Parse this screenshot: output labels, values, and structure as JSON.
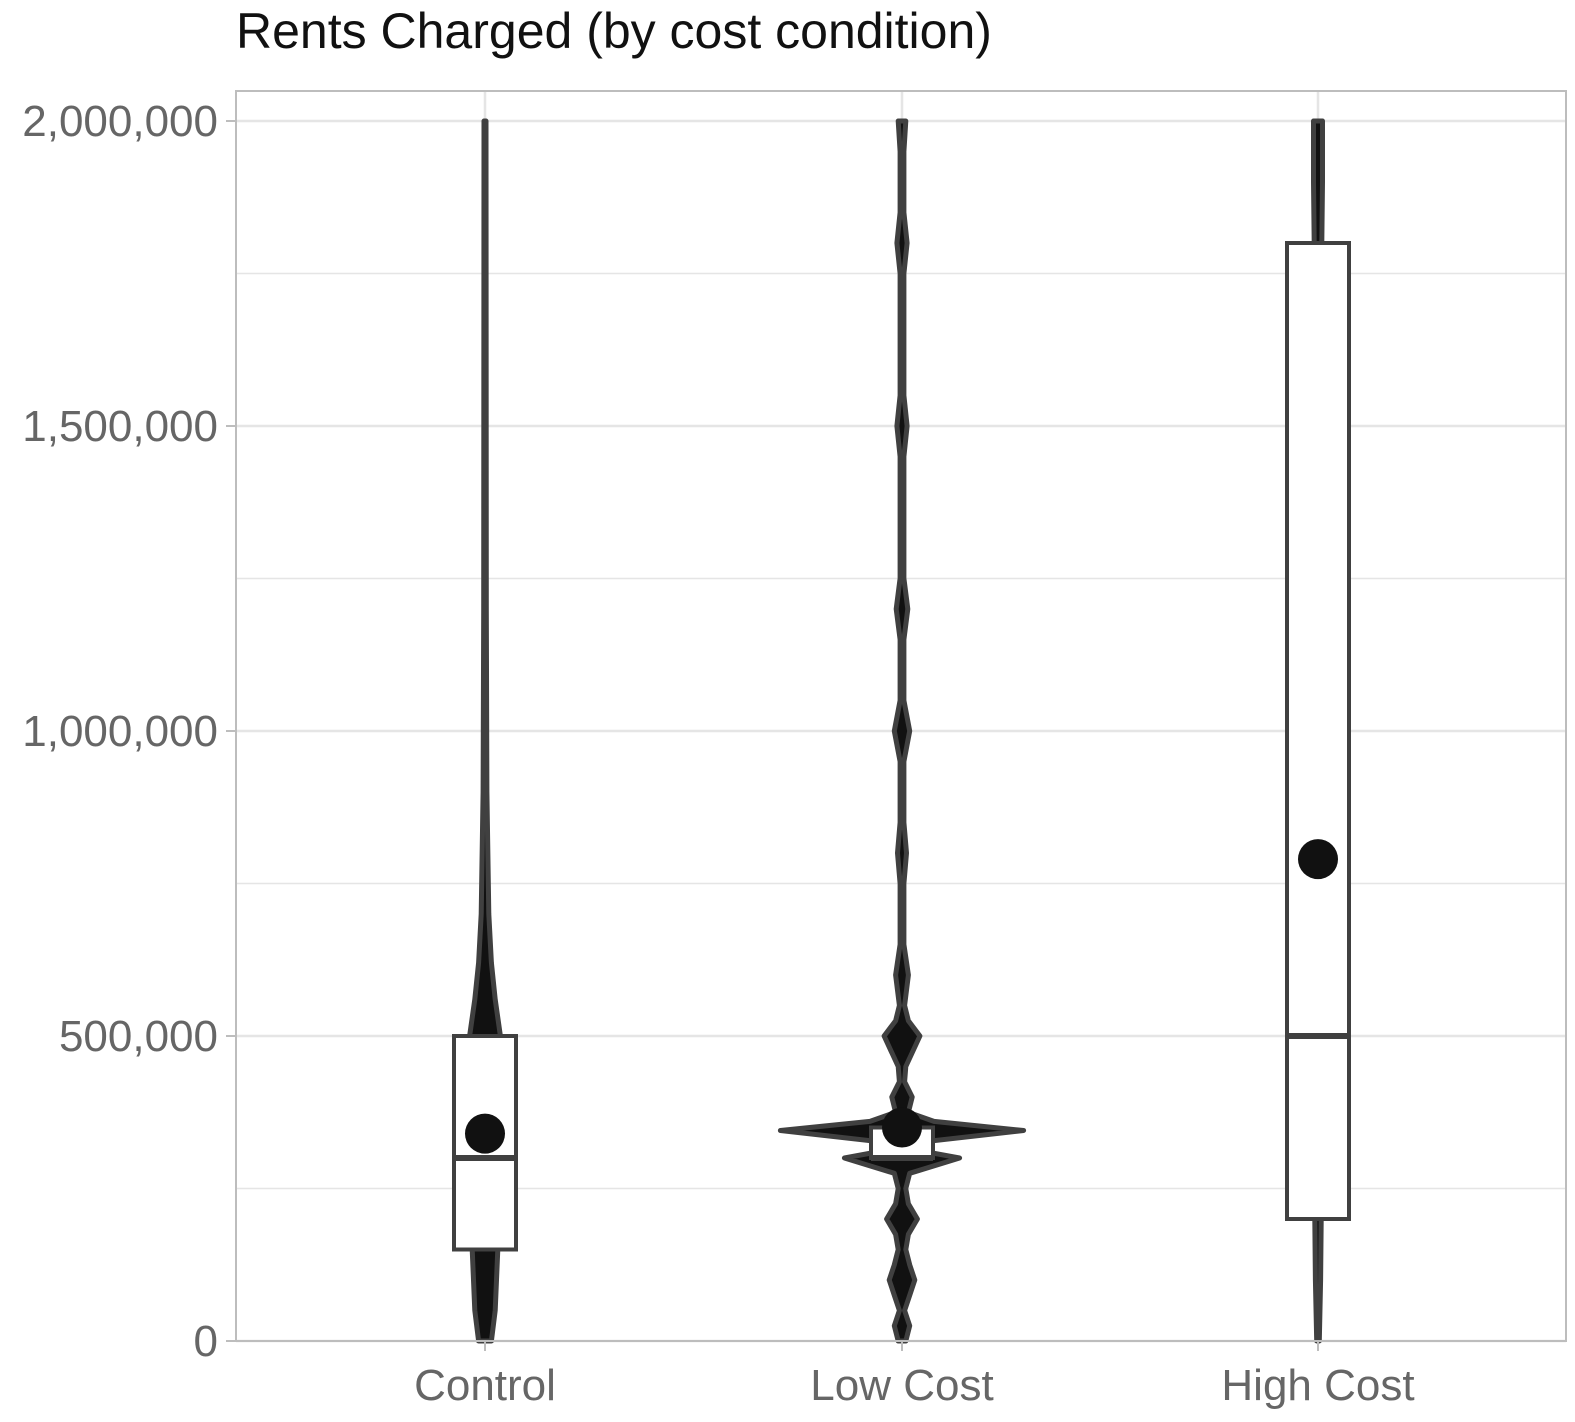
{
  "chart_data": {
    "type": "violin",
    "title": "Rents Charged (by cost condition)",
    "xlabel": "",
    "ylabel": "",
    "categories": [
      "Control",
      "Low Cost",
      "High Cost"
    ],
    "ylim": [
      0,
      2000000
    ],
    "yticks": [
      0,
      500000,
      1000000,
      1500000,
      2000000
    ],
    "ytick_labels": [
      "0",
      "500,000",
      "1,000,000",
      "1,500,000",
      "2,000,000"
    ],
    "grid": true,
    "legend": "none",
    "colors": {
      "violin": "#404040",
      "box_fill": "#ffffff",
      "mean_point": "#111111",
      "grid": "#e5e5e5",
      "panel_border": "#bdbdbd"
    },
    "groups": [
      {
        "name": "Control",
        "box": {
          "lower": 150000,
          "median": 300000,
          "upper": 500000
        },
        "mean": 340000,
        "range": [
          0,
          2000000
        ],
        "density": [
          [
            0,
            0.05
          ],
          [
            50000,
            0.08
          ],
          [
            150000,
            0.1
          ],
          [
            300000,
            0.12
          ],
          [
            400000,
            0.12
          ],
          [
            500000,
            0.12
          ],
          [
            560000,
            0.08
          ],
          [
            620000,
            0.05
          ],
          [
            700000,
            0.03
          ],
          [
            900000,
            0.015
          ],
          [
            1200000,
            0.01
          ],
          [
            2000000,
            0.008
          ]
        ]
      },
      {
        "name": "Low Cost",
        "box": {
          "lower": 300000,
          "median": 300000,
          "upper": 350000
        },
        "mean": 350000,
        "range": [
          0,
          2000000
        ],
        "density": [
          [
            0,
            0.03
          ],
          [
            25000,
            0.06
          ],
          [
            50000,
            0.02
          ],
          [
            75000,
            0.06
          ],
          [
            100000,
            0.1
          ],
          [
            125000,
            0.06
          ],
          [
            150000,
            0.03
          ],
          [
            175000,
            0.05
          ],
          [
            200000,
            0.12
          ],
          [
            225000,
            0.05
          ],
          [
            250000,
            0.03
          ],
          [
            275000,
            0.06
          ],
          [
            300000,
            0.45
          ],
          [
            315000,
            0.06
          ],
          [
            325000,
            0.1
          ],
          [
            345000,
            0.95
          ],
          [
            360000,
            0.25
          ],
          [
            375000,
            0.05
          ],
          [
            400000,
            0.08
          ],
          [
            425000,
            0.02
          ],
          [
            450000,
            0.03
          ],
          [
            500000,
            0.14
          ],
          [
            525000,
            0.05
          ],
          [
            550000,
            0.02
          ],
          [
            600000,
            0.05
          ],
          [
            650000,
            0.015
          ],
          [
            750000,
            0.015
          ],
          [
            800000,
            0.035
          ],
          [
            850000,
            0.015
          ],
          [
            950000,
            0.015
          ],
          [
            1000000,
            0.06
          ],
          [
            1050000,
            0.015
          ],
          [
            1150000,
            0.015
          ],
          [
            1200000,
            0.045
          ],
          [
            1250000,
            0.015
          ],
          [
            1450000,
            0.015
          ],
          [
            1500000,
            0.04
          ],
          [
            1550000,
            0.015
          ],
          [
            1750000,
            0.015
          ],
          [
            1800000,
            0.04
          ],
          [
            1850000,
            0.015
          ],
          [
            1950000,
            0.015
          ],
          [
            2000000,
            0.03
          ]
        ]
      },
      {
        "name": "High Cost",
        "box": {
          "lower": 200000,
          "median": 500000,
          "upper": 1800000
        },
        "mean": 790000,
        "range": [
          0,
          2000000
        ],
        "density": [
          [
            0,
            0.01
          ],
          [
            100000,
            0.02
          ],
          [
            200000,
            0.025
          ],
          [
            1800000,
            0.03
          ],
          [
            1900000,
            0.035
          ],
          [
            2000000,
            0.035
          ]
        ]
      }
    ]
  }
}
